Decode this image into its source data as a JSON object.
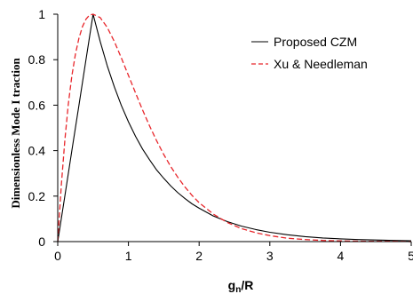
{
  "chart_data": {
    "type": "line",
    "xlabel": {
      "main": "g",
      "sub": "n",
      "rest": "/R"
    },
    "ylabel": "Dimensionless Mode I traction",
    "xlim": [
      0,
      5
    ],
    "ylim": [
      0,
      1
    ],
    "xticks": [
      "0",
      "1",
      "2",
      "3",
      "4",
      "5"
    ],
    "yticks": [
      "0",
      "0.2",
      "0.4",
      "0.6",
      "0.8",
      "1"
    ],
    "grid": false,
    "legend_position": "top-right",
    "series": [
      {
        "name": "Proposed CZM",
        "color": "#000000",
        "dash": "solid",
        "x": [
          0,
          0.1,
          0.2,
          0.3,
          0.4,
          0.5,
          0.6,
          0.7,
          0.8,
          0.9,
          1.0,
          1.1,
          1.2,
          1.3,
          1.4,
          1.5,
          1.6,
          1.7,
          1.8,
          1.9,
          2.0,
          2.2,
          2.4,
          2.6,
          2.8,
          3.0,
          3.25,
          3.5,
          3.75,
          4.0,
          4.25,
          4.5,
          4.75,
          5.0
        ],
        "y": [
          0,
          0.2,
          0.4,
          0.6,
          0.8,
          1.0,
          0.88,
          0.774,
          0.681,
          0.599,
          0.527,
          0.463,
          0.407,
          0.359,
          0.315,
          0.278,
          0.244,
          0.215,
          0.189,
          0.166,
          0.147,
          0.113,
          0.088,
          0.068,
          0.053,
          0.041,
          0.03,
          0.022,
          0.016,
          0.012,
          0.009,
          0.007,
          0.005,
          0.004
        ]
      },
      {
        "name": "Xu & Needleman",
        "color": "#e8262b",
        "dash": "dashed",
        "x": [
          0,
          0.05,
          0.1,
          0.15,
          0.2,
          0.25,
          0.3,
          0.35,
          0.4,
          0.45,
          0.5,
          0.6,
          0.7,
          0.8,
          0.9,
          1.0,
          1.1,
          1.2,
          1.3,
          1.4,
          1.5,
          1.6,
          1.7,
          1.8,
          1.9,
          2.0,
          2.2,
          2.4,
          2.6,
          2.8,
          3.0,
          3.25,
          3.5,
          3.75,
          4.0,
          4.25,
          4.5,
          4.75,
          5.0
        ],
        "y": [
          0,
          0.246,
          0.445,
          0.604,
          0.729,
          0.824,
          0.895,
          0.946,
          0.978,
          0.996,
          1.0,
          0.985,
          0.942,
          0.88,
          0.808,
          0.731,
          0.654,
          0.579,
          0.508,
          0.443,
          0.383,
          0.329,
          0.282,
          0.24,
          0.203,
          0.171,
          0.121,
          0.084,
          0.057,
          0.039,
          0.026,
          0.015,
          0.009,
          0.005,
          0.003,
          0.002,
          0.001,
          0.001,
          0.0
        ]
      }
    ]
  }
}
